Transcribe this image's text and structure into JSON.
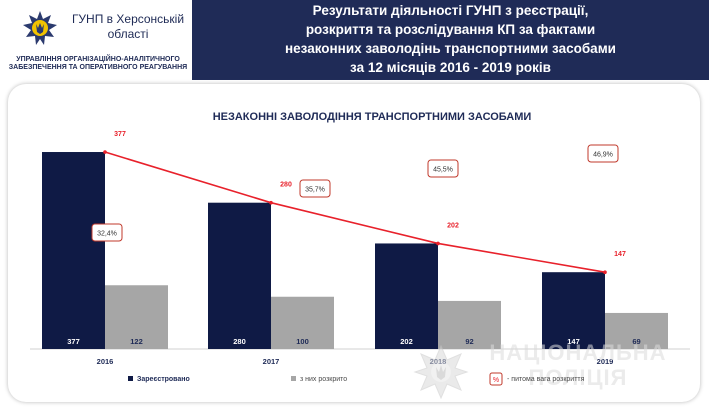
{
  "header": {
    "org_name": "ГУНП в Херсонській області",
    "dept_line1": "УПРАВЛІННЯ ОРГАНІЗАЦІЙНО-АНАЛІТИЧНОГО",
    "dept_line2": "ЗАБЕЗПЕЧЕННЯ ТА ОПЕРАТИВНОГО РЕАГУВАННЯ",
    "title_lines": [
      "Результати діяльності ГУНП з реєстрації,",
      "розкриття та розслідування КП за фактами",
      "незаконних заволодінь транспортними засобами",
      "за  12 місяців 2016 - 2019 років"
    ]
  },
  "watermark": {
    "line1": "НАЦІОНАЛЬНА",
    "line2": "ПОЛІЦІЯ"
  },
  "colors": {
    "registered": "#0f1a45",
    "solved": "#a6a6a6",
    "trend": "#e8212b",
    "header_bg": "#1f2b57"
  },
  "chart_data": {
    "type": "bar",
    "title": "НЕЗАКОННІ ЗАВОЛОДІННЯ ТРАНСПОРТНИМИ ЗАСОБАМИ",
    "categories": [
      "2016",
      "2017",
      "2018",
      "2019"
    ],
    "series": [
      {
        "name": "Зареєстровано",
        "values": [
          377,
          280,
          202,
          147
        ]
      },
      {
        "name": "з них розкрито",
        "values": [
          122,
          100,
          92,
          69
        ]
      }
    ],
    "trend": {
      "series": "Зареєстровано",
      "labels": [
        "377",
        "280",
        "202",
        "147"
      ]
    },
    "percent": {
      "name": "питома вага розкриття",
      "values": [
        "32,4%",
        "35,7%",
        "45,5%",
        "46,9%"
      ]
    },
    "legend_placement": "bottom",
    "grid": false,
    "ylim": [
      0,
      400
    ]
  }
}
